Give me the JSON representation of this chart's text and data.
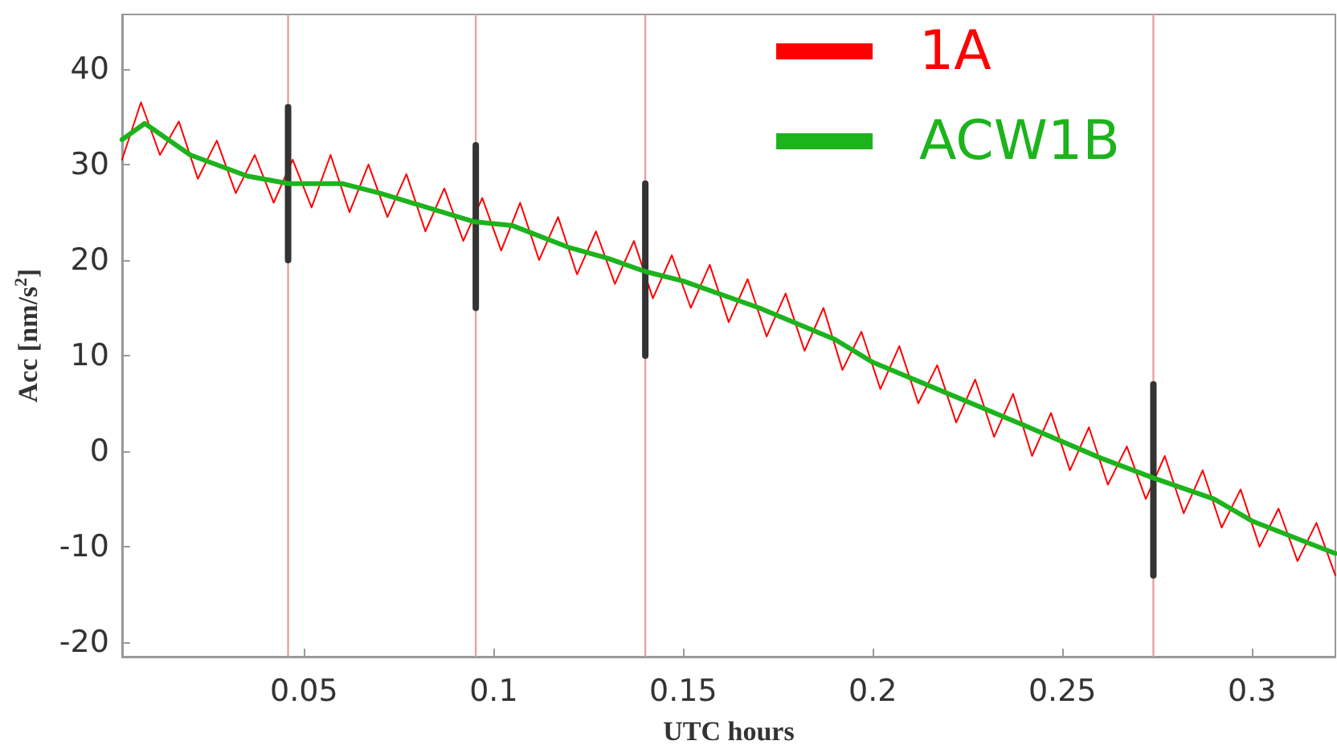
{
  "chart_data": {
    "type": "line",
    "xlabel": "UTC hours",
    "ylabel": "Acc [nm/s$^{2}$]",
    "xlim": [
      0.002,
      0.322
    ],
    "xticks": [
      0.05,
      0.1,
      0.15,
      0.2,
      0.25,
      0.3
    ],
    "ylim": [
      -21.5,
      45.7
    ],
    "yticks": [
      -20,
      -10,
      0,
      10,
      20,
      30,
      40
    ],
    "grid": false,
    "legend": "top right",
    "marker": "none",
    "line_style": "solid",
    "ref_lines": [
      {
        "axis": "x",
        "value": 0.0458,
        "color": "#e8a0a0"
      },
      {
        "axis": "x",
        "value": 0.0953,
        "color": "#e8a0a0"
      },
      {
        "axis": "x",
        "value": 0.14,
        "color": "#e8a0a0"
      },
      {
        "axis": "x",
        "value": 0.274,
        "color": "#e8a0a0"
      }
    ],
    "series": [
      {
        "name": "1A",
        "color": "#ff0000",
        "x": [
          0.002,
          0.007,
          0.012,
          0.017,
          0.022,
          0.027,
          0.032,
          0.037,
          0.042,
          0.047,
          0.052,
          0.057,
          0.062,
          0.067,
          0.072,
          0.077,
          0.082,
          0.087,
          0.092,
          0.097,
          0.102,
          0.107,
          0.112,
          0.117,
          0.122,
          0.127,
          0.132,
          0.137,
          0.142,
          0.147,
          0.152,
          0.157,
          0.162,
          0.167,
          0.172,
          0.177,
          0.182,
          0.187,
          0.192,
          0.197,
          0.202,
          0.207,
          0.212,
          0.217,
          0.222,
          0.227,
          0.232,
          0.237,
          0.242,
          0.247,
          0.252,
          0.257,
          0.262,
          0.267,
          0.272,
          0.277,
          0.282,
          0.287,
          0.292,
          0.297,
          0.302,
          0.307,
          0.312,
          0.317,
          0.322
        ],
        "values": [
          30.5,
          36.5,
          31,
          34.5,
          28.5,
          32.5,
          27,
          31,
          26,
          30.5,
          25.5,
          31,
          25,
          30,
          24.5,
          29,
          23,
          27.5,
          22,
          26.5,
          21,
          26,
          20,
          24.5,
          18.5,
          23,
          17.5,
          22,
          16,
          20.5,
          15,
          19.5,
          13.5,
          18,
          12,
          16.5,
          10.5,
          15,
          8.5,
          12.5,
          6.5,
          11,
          5,
          9,
          3,
          7.5,
          1.5,
          6,
          -0.5,
          4,
          -2,
          2.5,
          -3.5,
          0.5,
          -5,
          -0.5,
          -6.5,
          -2,
          -8,
          -4,
          -10,
          -6,
          -11.5,
          -7.5,
          -13
        ]
      },
      {
        "color": "#333333",
        "x": [
          0.0458,
          0.0458,
          0.0459,
          0.0953,
          0.0953,
          0.0954,
          0.14,
          0.14,
          0.1401,
          0.274,
          0.274
        ],
        "values": [
          36,
          20,
          null,
          32,
          15,
          null,
          28,
          10,
          null,
          7,
          -13
        ]
      },
      {
        "name": "ACW1B",
        "color": "#1db31d",
        "x": [
          0.002,
          0.008,
          0.02,
          0.035,
          0.046,
          0.06,
          0.07,
          0.08,
          0.095,
          0.105,
          0.12,
          0.13,
          0.14,
          0.15,
          0.17,
          0.19,
          0.2,
          0.22,
          0.24,
          0.26,
          0.274,
          0.29,
          0.3,
          0.322
        ],
        "values": [
          32.6,
          34.3,
          31,
          28.8,
          28,
          28,
          27,
          25.8,
          24,
          23.6,
          21.3,
          20.2,
          18.8,
          17.8,
          15,
          11.7,
          9.3,
          6,
          2.7,
          -0.7,
          -2.8,
          -5,
          -7.3,
          -10.7
        ]
      }
    ]
  }
}
